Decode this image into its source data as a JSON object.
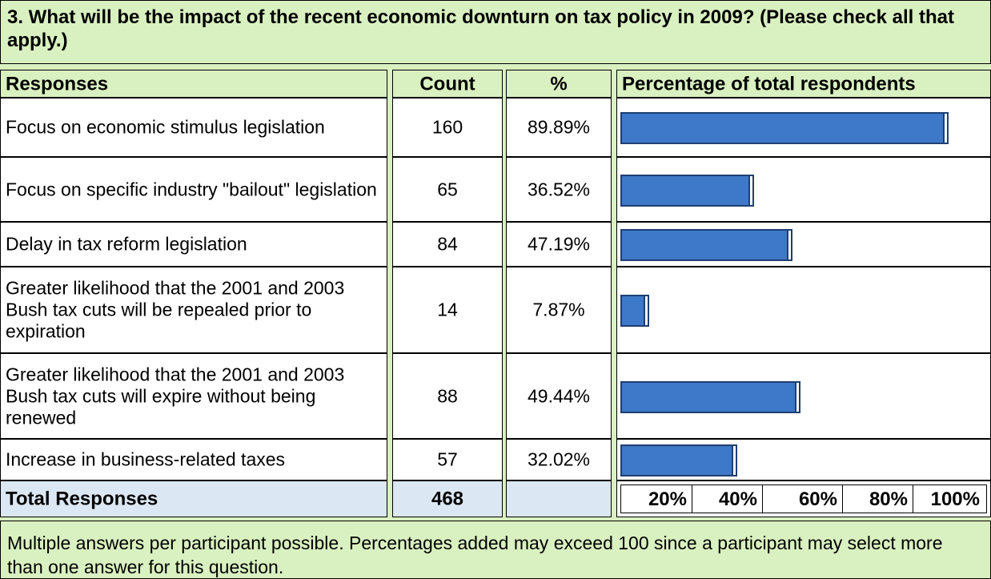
{
  "question": "3. What will be the impact of the recent economic downturn on tax policy in 2009? (Please check all that apply.)",
  "headers": {
    "responses": "Responses",
    "count": "Count",
    "percent": "%",
    "bar": "Percentage of total respondents"
  },
  "rows": [
    {
      "label": "Focus on economic stimulus legislation",
      "count": "160",
      "percent": "89.89%"
    },
    {
      "label": "Focus on specific industry \"bailout\" legislation",
      "count": "65",
      "percent": "36.52%"
    },
    {
      "label": "Delay in tax reform legislation",
      "count": "84",
      "percent": "47.19%"
    },
    {
      "label": "Greater likelihood that the 2001 and 2003 Bush tax cuts will be repealed prior to expiration",
      "count": "14",
      "percent": "7.87%"
    },
    {
      "label": "Greater likelihood that the 2001 and 2003 Bush tax cuts will expire without being renewed",
      "count": "88",
      "percent": "49.44%"
    },
    {
      "label": "Increase in business-related taxes",
      "count": "57",
      "percent": "32.02%"
    }
  ],
  "total": {
    "label": "Total Responses",
    "count": "468"
  },
  "scale": [
    "20%",
    "40%",
    "60%",
    "80%",
    "100%"
  ],
  "note": "Multiple answers per participant possible. Percentages added may exceed 100 since a participant may select more than one answer for this question.",
  "colors": {
    "bar": "#3e78c8",
    "header_bg": "#d9f0c0",
    "total_bg": "#dbe7f3"
  },
  "chart_data": {
    "type": "bar",
    "categories": [
      "Focus on economic stimulus legislation",
      "Focus on specific industry \"bailout\" legislation",
      "Delay in tax reform legislation",
      "Greater likelihood that the 2001 and 2003 Bush tax cuts will be repealed prior to expiration",
      "Greater likelihood that the 2001 and 2003 Bush tax cuts will expire without being renewed",
      "Increase in business-related taxes"
    ],
    "values": [
      89.89,
      36.52,
      47.19,
      7.87,
      49.44,
      32.02
    ],
    "counts": [
      160,
      65,
      84,
      14,
      88,
      57
    ],
    "ylim": [
      0,
      100
    ],
    "xlabel": "Percentage of total respondents",
    "orientation": "horizontal"
  }
}
